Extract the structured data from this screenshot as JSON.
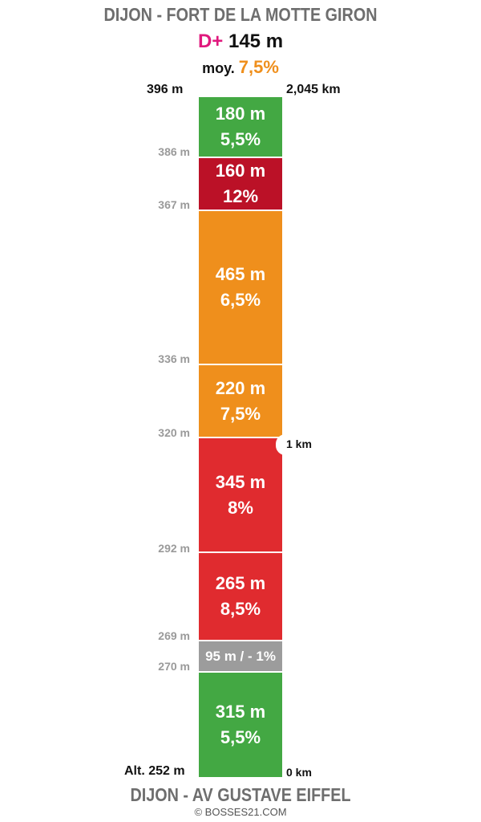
{
  "header": {
    "title": "DIJON - FORT DE LA MOTTE GIRON",
    "dplus_label": "D+",
    "dplus_value": "145 m",
    "moy_label": "moy.",
    "moy_value": "7,5%"
  },
  "top_altitude": "396 m",
  "top_distance": "2,045 km",
  "base_altitude": "Alt. 252 m",
  "base_distance": "0 km",
  "km_marker": "1 km",
  "intermediate_altitudes": [
    "386 m",
    "367 m",
    "336 m",
    "320 m",
    "292 m",
    "269 m",
    "270 m"
  ],
  "segments": [
    {
      "distance": "180 m",
      "grade": "5,5%",
      "color": "#43a843"
    },
    {
      "distance": "160 m",
      "grade": "12%",
      "color": "#bb1127"
    },
    {
      "distance": "465 m",
      "grade": "6,5%",
      "color": "#ef8f1c"
    },
    {
      "distance": "220 m",
      "grade": "7,5%",
      "color": "#ef8f1c"
    },
    {
      "distance": "345 m",
      "grade": "8%",
      "color": "#e02b2f"
    },
    {
      "distance": "265 m",
      "grade": "8,5%",
      "color": "#e02b2f"
    },
    {
      "distance": "95 m / - 1%",
      "grade": "",
      "color": "#9c9c9c"
    },
    {
      "distance": "315 m",
      "grade": "5,5%",
      "color": "#43a843"
    }
  ],
  "footer": {
    "title": "DIJON - AV GUSTAVE EIFFEL",
    "copyright": "© BOSSES21.COM"
  }
}
